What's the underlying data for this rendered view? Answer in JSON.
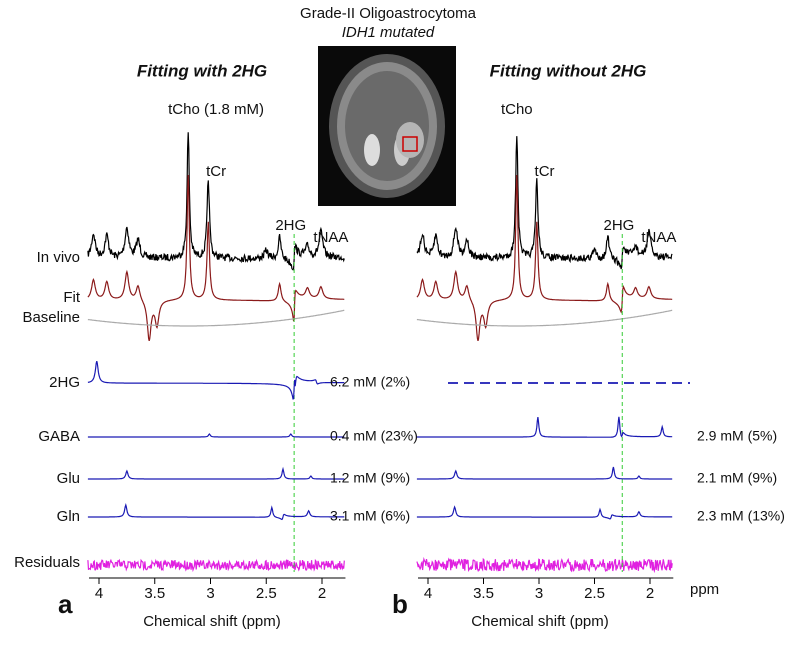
{
  "header": {
    "title": "Grade-II Oligoastrocytoma",
    "subtitle": "IDH1 mutated"
  },
  "x_unit": "ppm",
  "panels": [
    {
      "letter": "a",
      "title": "Fitting with 2HG",
      "peak_labels": {
        "tcho": "tCho (1.8 mM)",
        "tcr": "tCr",
        "twohg": "2HG",
        "tnaa": "tNAA"
      },
      "rows": [
        "In vivo",
        "Fit",
        "Baseline",
        "2HG",
        "GABA",
        "Glu",
        "Gln",
        "Residuals"
      ],
      "metabolite_values": [
        "6.2 mM (2%)",
        "0.4 mM (23%)",
        "1.2 mM (9%)",
        "3.1 mM (6%)"
      ],
      "x_label": "Chemical shift (ppm)",
      "x_ticks": [
        "4",
        "3.5",
        "3",
        "2.5",
        "2"
      ]
    },
    {
      "letter": "b",
      "title": "Fitting without 2HG",
      "peak_labels": {
        "tcho": "tCho",
        "tcr": "tCr",
        "twohg": "2HG",
        "tnaa": "tNAA"
      },
      "metabolite_values": [
        "2.9 mM (5%)",
        "2.1 mM (9%)",
        "2.3 mM (13%)"
      ],
      "x_label": "Chemical shift (ppm)",
      "x_ticks": [
        "4",
        "3.5",
        "3",
        "2.5",
        "2"
      ]
    }
  ]
}
